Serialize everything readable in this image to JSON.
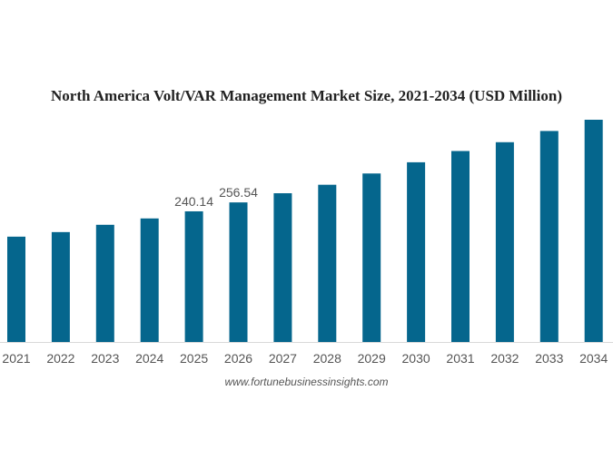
{
  "chart_data": {
    "type": "bar",
    "title": "North America Volt/VAR Management Market Size, 2021-2034 (USD Million)",
    "categories": [
      "2021",
      "2022",
      "2023",
      "2024",
      "2025",
      "2026",
      "2027",
      "2028",
      "2029",
      "2030",
      "2031",
      "2032",
      "2033",
      "2034"
    ],
    "values": [
      193.6,
      202.0,
      215.4,
      227.1,
      240.14,
      256.54,
      273.4,
      289.0,
      309.7,
      330.3,
      351.0,
      367.2,
      387.8,
      408.5
    ],
    "data_labels": {
      "2025": "240.14",
      "2026": "256.54"
    },
    "xlabel": "",
    "ylabel": "",
    "ylim": [
      0,
      408.5
    ],
    "grid": false,
    "bar_color": "#05668d"
  },
  "source": "www.fortunebusinessinsights.com"
}
